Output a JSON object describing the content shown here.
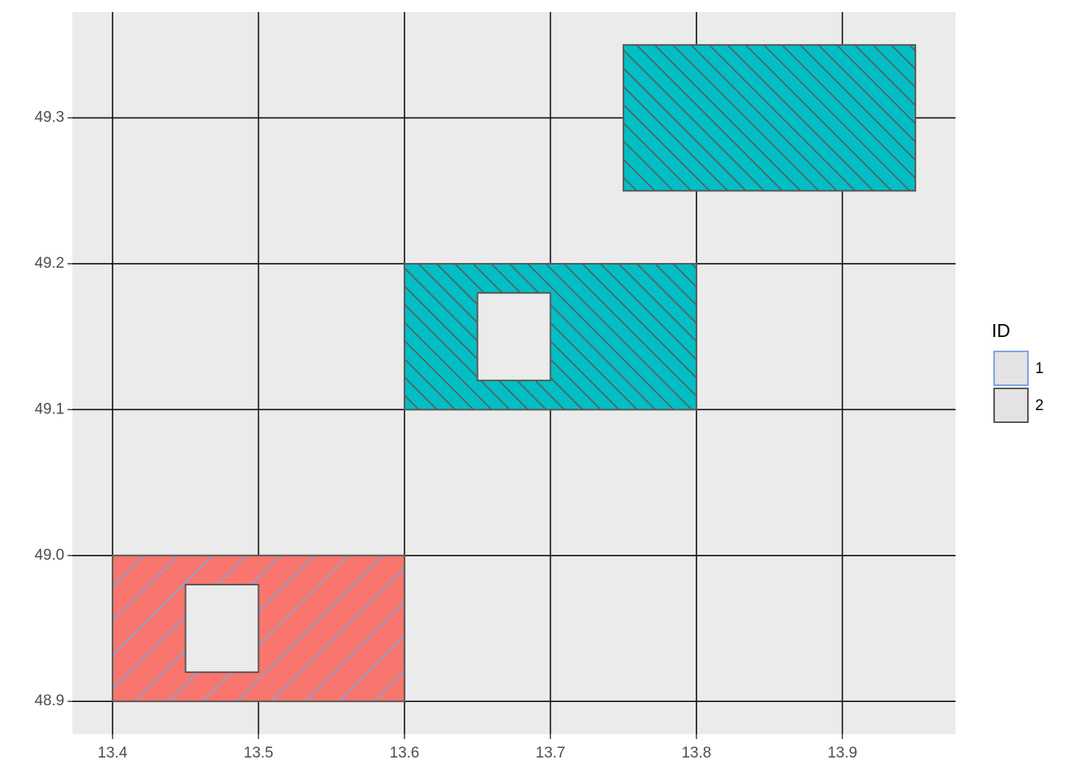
{
  "chart_data": {
    "type": "polygon",
    "xlim": [
      13.3725,
      13.9775
    ],
    "ylim": [
      48.8775,
      49.3725
    ],
    "xticks": [
      13.4,
      13.5,
      13.6,
      13.7,
      13.8,
      13.9
    ],
    "yticks": [
      48.9,
      {
        "value": 49,
        "label": "49.0"
      },
      49.1,
      49.2,
      49.3
    ],
    "grid": true,
    "border_color": "#595959",
    "legend_title": "ID",
    "legend_position": "right",
    "series": [
      {
        "name": "1",
        "color": "#f8766d",
        "pattern_color": "#7ea6e0",
        "pattern_angle": 45,
        "polygons": [
          [
            {
              "x": [
                13.4,
                13.6,
                13.6,
                13.4
              ],
              "y": [
                48.9,
                48.9,
                49.0,
                49.0
              ]
            },
            {
              "x": [
                13.45,
                13.5,
                13.5,
                13.45
              ],
              "y": [
                48.92,
                48.92,
                48.98,
                48.98
              ]
            }
          ]
        ]
      },
      {
        "name": "2",
        "color": "#00bfc4",
        "pattern_color": "#595959",
        "pattern_angle": -45,
        "polygons": [
          [
            {
              "x": [
                13.6,
                13.8,
                13.8,
                13.6
              ],
              "y": [
                49.1,
                49.1,
                49.2,
                49.2
              ]
            },
            {
              "x": [
                13.65,
                13.7,
                13.7,
                13.65
              ],
              "y": [
                49.12,
                49.12,
                49.18,
                49.18
              ]
            }
          ],
          [
            {
              "x": [
                13.75,
                13.95,
                13.95,
                13.75
              ],
              "y": [
                49.25,
                49.25,
                49.35,
                49.35
              ]
            }
          ]
        ]
      }
    ]
  }
}
